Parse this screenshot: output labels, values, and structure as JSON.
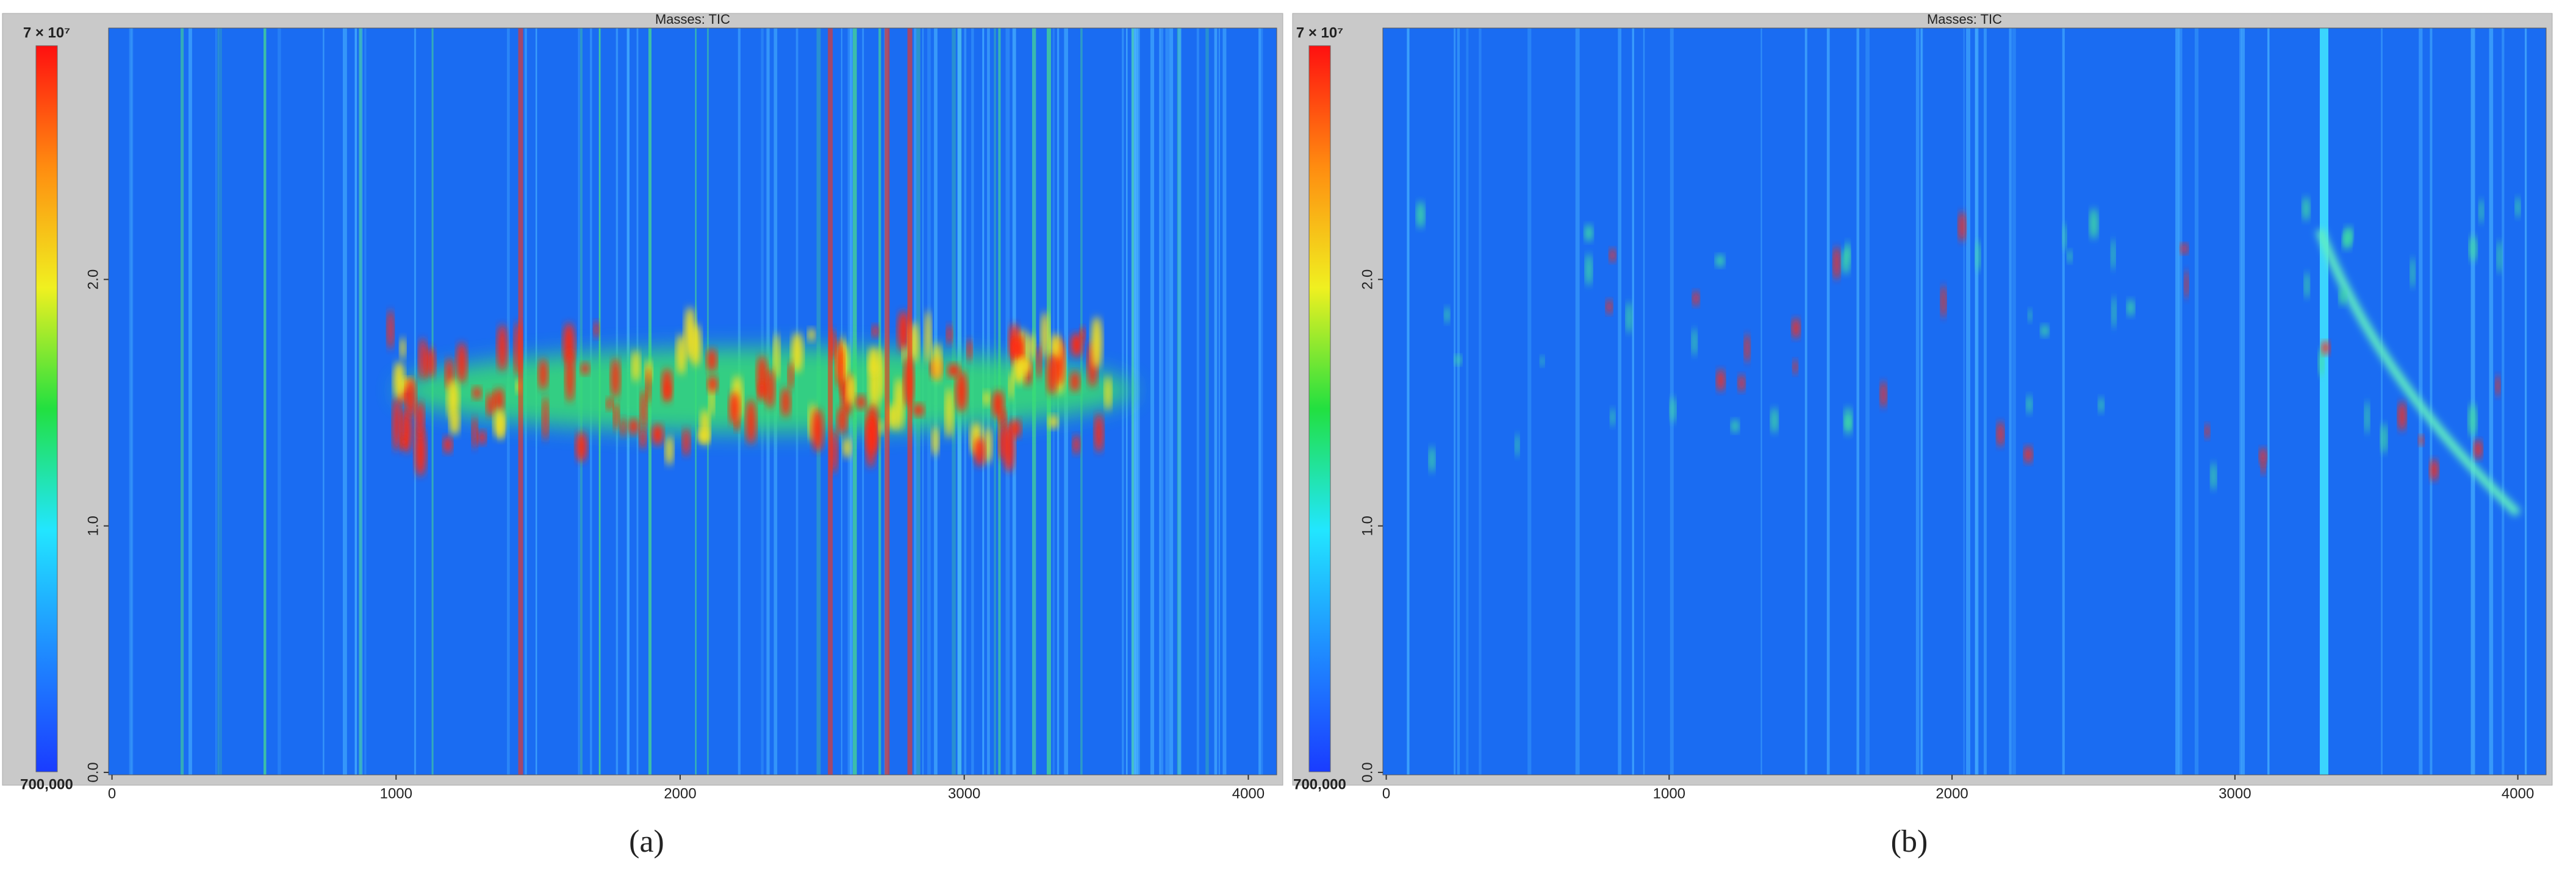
{
  "chart_data": [
    {
      "type": "heatmap",
      "title": "Masses: TIC",
      "caption": "(a)",
      "xlim": [
        -12,
        4100
      ],
      "xticks": [
        0,
        1000,
        2000,
        3000,
        4000
      ],
      "ylim": [
        -0.01,
        3.02
      ],
      "yticks": [
        {
          "value": 0,
          "label": "0.0"
        },
        {
          "value": 1,
          "label": "1.0"
        },
        {
          "value": 2,
          "label": "2.0"
        }
      ],
      "colorbar": {
        "lim": [
          700000,
          70000000
        ],
        "ticks": [
          {
            "value": 700000,
            "label": "700,000"
          },
          {
            "value": 70000000,
            "label": "7 × 10⁷"
          }
        ],
        "colors": [
          "#1a3cff",
          "#1f8cff",
          "#22e6ff",
          "#22e040",
          "#f0f020",
          "#ff8c10",
          "#ff1010"
        ]
      }
    },
    {
      "type": "heatmap",
      "title": "Masses: TIC",
      "caption": "(b)",
      "xlim": [
        -12,
        4100
      ],
      "xticks": [
        0,
        1000,
        2000,
        3000,
        4000
      ],
      "ylim": [
        -0.01,
        3.02
      ],
      "yticks": [
        {
          "value": 0,
          "label": "0.0"
        },
        {
          "value": 1,
          "label": "1.0"
        },
        {
          "value": 2,
          "label": "2.0"
        }
      ],
      "colorbar": {
        "lim": [
          700000,
          70000000
        ],
        "ticks": [
          {
            "value": 700000,
            "label": "700,000"
          },
          {
            "value": 70000000,
            "label": "7 × 10⁷"
          }
        ],
        "colors": [
          "#1a3cff",
          "#1f8cff",
          "#22e6ff",
          "#22e040",
          "#f0f020",
          "#ff8c10",
          "#ff1010"
        ]
      }
    }
  ]
}
